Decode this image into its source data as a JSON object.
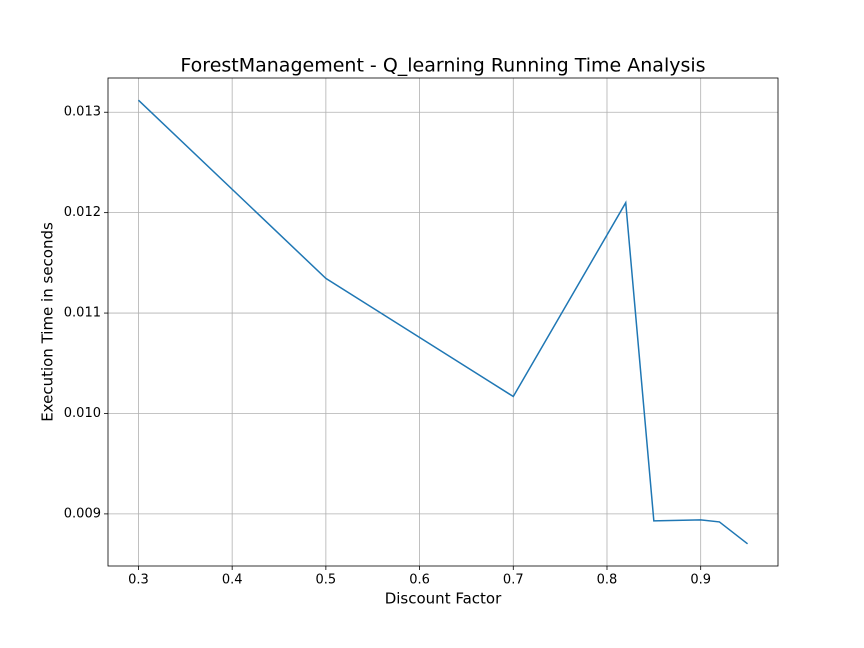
{
  "chart_data": {
    "type": "line",
    "title": "ForestManagement - Q_learning Running Time Analysis",
    "x_label": "Discount Factor",
    "y_label": "Execution Time in seconds",
    "x": [
      0.3,
      0.5,
      0.7,
      0.82,
      0.85,
      0.9,
      0.92,
      0.95
    ],
    "values": [
      0.01312,
      0.011345,
      0.010169,
      0.012099,
      0.00893,
      0.00894,
      0.00892,
      0.008702
    ],
    "color": "#1f77b4",
    "xlim": [
      0.2675,
      0.9825
    ],
    "xticks": [
      0.3,
      0.4,
      0.5,
      0.6,
      0.7,
      0.8,
      0.9
    ],
    "ylim": [
      0.008481,
      0.013341
    ],
    "yticks": [
      0.009,
      {
        "value": 0.01,
        "label": "0.010"
      },
      0.011,
      0.012,
      0.013
    ],
    "grid": true
  }
}
